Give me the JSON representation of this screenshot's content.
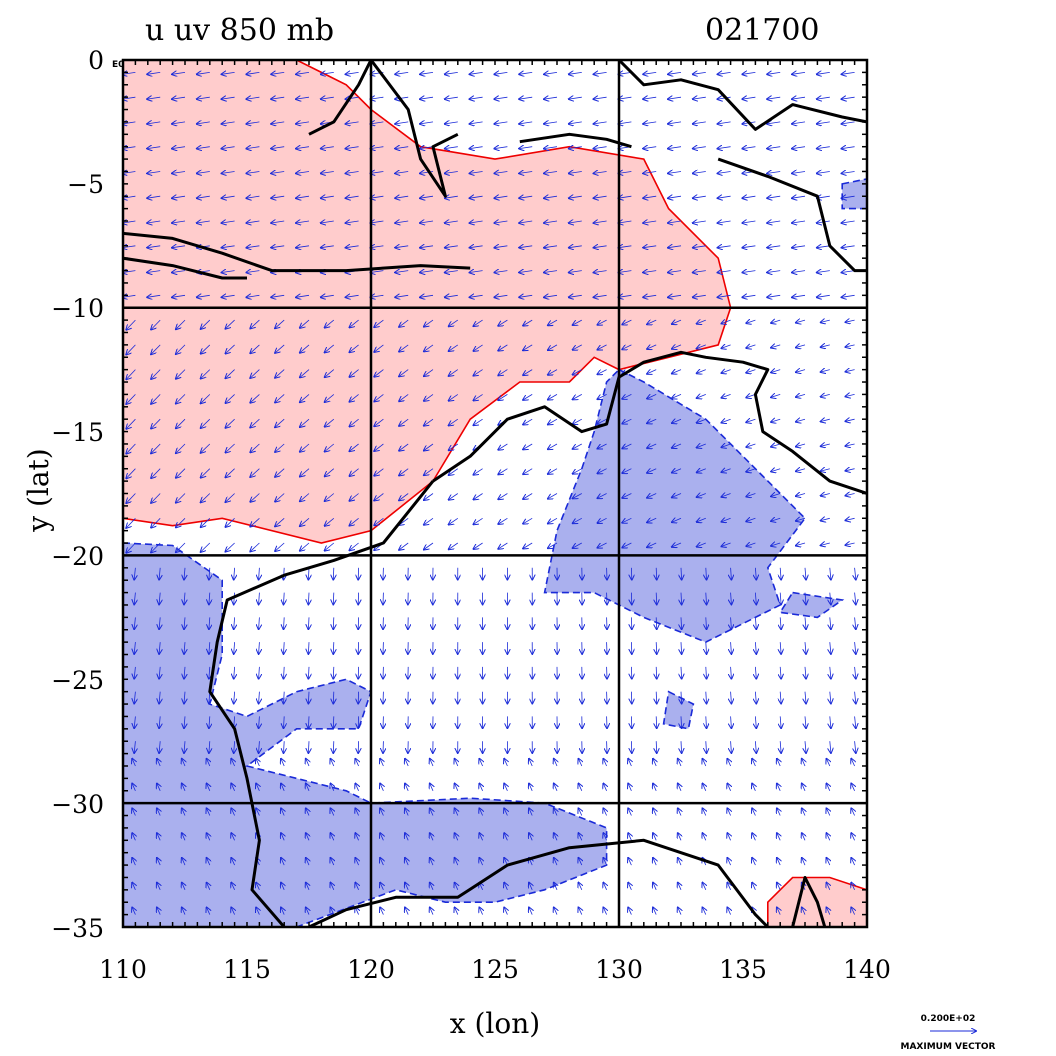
{
  "chart_data": {
    "type": "heatmap",
    "title_left": "u  uv 850 mb",
    "title_right": "021700",
    "xlabel": "x (lon)",
    "ylabel": "y (lat)",
    "xlim": [
      110,
      140
    ],
    "ylim": [
      -35,
      0
    ],
    "x_ticks": [
      "110",
      "115",
      "120",
      "125",
      "130",
      "135",
      "140"
    ],
    "y_ticks": [
      "0",
      "−5",
      "−10",
      "−15",
      "−20",
      "−25",
      "−30",
      "−35"
    ],
    "corner_label": "E0",
    "grid_lines": {
      "lon": [
        120,
        130
      ],
      "lat": [
        -10,
        -20,
        -30
      ]
    },
    "vector_legend": {
      "value": "0.200E+02",
      "label": "MAXIMUM VECTOR"
    },
    "colors": {
      "positive_fill": "#ffcccc",
      "positive_contour": "#ee0000",
      "negative_fill": "#aab0ee",
      "negative_contour": "#1a2ad8",
      "coast": "#000000",
      "vectors": "#1a2ad8"
    },
    "positive_region": [
      [
        110,
        0
      ],
      [
        117,
        0
      ],
      [
        118,
        -0.5
      ],
      [
        119,
        -1
      ],
      [
        120,
        -2
      ],
      [
        122,
        -3.5
      ],
      [
        125,
        -4
      ],
      [
        128,
        -3.5
      ],
      [
        131,
        -4
      ],
      [
        132,
        -6
      ],
      [
        134,
        -8
      ],
      [
        134.5,
        -10
      ],
      [
        134,
        -11.5
      ],
      [
        132,
        -12
      ],
      [
        130,
        -12.5
      ],
      [
        129,
        -12
      ],
      [
        128,
        -13
      ],
      [
        126,
        -13
      ],
      [
        124,
        -14.5
      ],
      [
        122.5,
        -17
      ],
      [
        120,
        -19
      ],
      [
        118,
        -19.5
      ],
      [
        114,
        -18.5
      ],
      [
        112,
        -18.8
      ],
      [
        110,
        -18.5
      ]
    ],
    "negative_regions": [
      [
        [
          110,
          -19.5
        ],
        [
          112,
          -19.6
        ],
        [
          114,
          -21
        ],
        [
          114,
          -24
        ],
        [
          113.5,
          -26
        ],
        [
          115,
          -26.5
        ],
        [
          117,
          -25.5
        ],
        [
          119,
          -25
        ],
        [
          120,
          -25.5
        ],
        [
          119.5,
          -27
        ],
        [
          117,
          -27
        ],
        [
          115,
          -28.5
        ],
        [
          119,
          -29.5
        ],
        [
          120,
          -30
        ],
        [
          124,
          -29.8
        ],
        [
          127,
          -30
        ],
        [
          129.5,
          -31
        ],
        [
          129.5,
          -32.5
        ],
        [
          127,
          -33.5
        ],
        [
          125,
          -34
        ],
        [
          123,
          -34
        ],
        [
          121,
          -33.5
        ],
        [
          117,
          -35
        ],
        [
          110,
          -35
        ]
      ],
      [
        [
          130,
          -12.5
        ],
        [
          131,
          -13
        ],
        [
          133.5,
          -14.5
        ],
        [
          136,
          -17
        ],
        [
          137.5,
          -18.5
        ],
        [
          136,
          -20.5
        ],
        [
          136.5,
          -22
        ],
        [
          133.5,
          -23.5
        ],
        [
          131,
          -22.5
        ],
        [
          129,
          -21.5
        ],
        [
          127,
          -21.5
        ],
        [
          127.5,
          -19
        ],
        [
          128.5,
          -16.5
        ],
        [
          129,
          -15
        ],
        [
          129.5,
          -13
        ]
      ],
      [
        [
          137,
          -21.5
        ],
        [
          139,
          -21.8
        ],
        [
          138,
          -22.5
        ],
        [
          136.5,
          -22.3
        ]
      ],
      [
        [
          139,
          -5
        ],
        [
          140,
          -4.8
        ],
        [
          140,
          -6
        ],
        [
          139,
          -6
        ]
      ],
      [
        [
          132,
          -25.5
        ],
        [
          133,
          -26
        ],
        [
          132.8,
          -27
        ],
        [
          131.8,
          -26.8
        ]
      ]
    ],
    "small_positive_region": [
      [
        136,
        -34
      ],
      [
        137,
        -33
      ],
      [
        138.5,
        -33
      ],
      [
        140,
        -33.5
      ],
      [
        140,
        -35
      ],
      [
        136,
        -35
      ]
    ]
  }
}
